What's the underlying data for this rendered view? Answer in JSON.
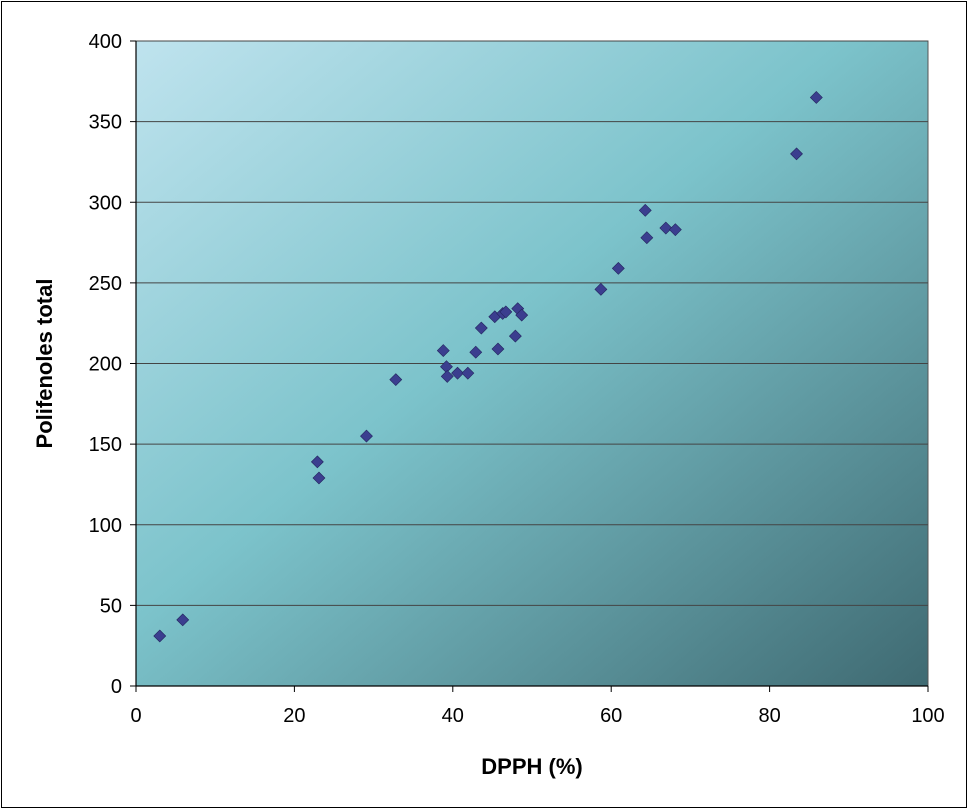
{
  "chart_data": {
    "type": "scatter",
    "title": "",
    "xlabel": "DPPH (%)",
    "ylabel": "Polifenoles total",
    "xlim": [
      0,
      100
    ],
    "ylim": [
      0,
      400
    ],
    "x_ticks": [
      0,
      20,
      40,
      60,
      80,
      100
    ],
    "y_ticks": [
      0,
      50,
      100,
      150,
      200,
      250,
      300,
      350,
      400
    ],
    "grid": "horizontal",
    "legend": "none",
    "marker": "diamond",
    "colors": {
      "marker": "#3b3e8f",
      "plot_bg_light": "#bfe3ee",
      "plot_bg_mid": "#7cc3cb",
      "plot_bg_dark": "#3f6a72",
      "gridline": "#444444"
    },
    "points": [
      {
        "x": 3.0,
        "y": 31
      },
      {
        "x": 5.9,
        "y": 41
      },
      {
        "x": 22.9,
        "y": 139
      },
      {
        "x": 23.1,
        "y": 129
      },
      {
        "x": 29.1,
        "y": 155
      },
      {
        "x": 32.8,
        "y": 190
      },
      {
        "x": 38.8,
        "y": 208
      },
      {
        "x": 39.2,
        "y": 198
      },
      {
        "x": 39.3,
        "y": 192
      },
      {
        "x": 40.6,
        "y": 194
      },
      {
        "x": 41.9,
        "y": 194
      },
      {
        "x": 42.9,
        "y": 207
      },
      {
        "x": 43.6,
        "y": 222
      },
      {
        "x": 45.3,
        "y": 229
      },
      {
        "x": 45.7,
        "y": 209
      },
      {
        "x": 46.3,
        "y": 231
      },
      {
        "x": 46.7,
        "y": 232
      },
      {
        "x": 47.9,
        "y": 217
      },
      {
        "x": 48.2,
        "y": 234
      },
      {
        "x": 48.7,
        "y": 230
      },
      {
        "x": 58.7,
        "y": 246
      },
      {
        "x": 60.9,
        "y": 259
      },
      {
        "x": 64.3,
        "y": 295
      },
      {
        "x": 64.5,
        "y": 278
      },
      {
        "x": 66.9,
        "y": 284
      },
      {
        "x": 68.1,
        "y": 283
      },
      {
        "x": 83.4,
        "y": 330
      },
      {
        "x": 85.9,
        "y": 365
      }
    ]
  }
}
